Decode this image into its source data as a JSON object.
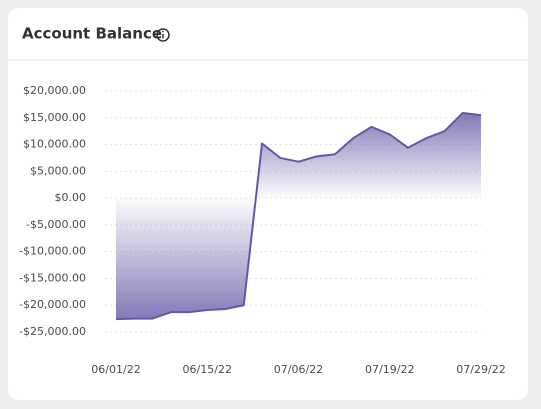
{
  "chart_data": {
    "type": "area",
    "title": "Account Balance",
    "categories": [
      "06/01/22",
      null,
      null,
      null,
      null,
      "06/15/22",
      null,
      null,
      null,
      null,
      "07/06/22",
      null,
      null,
      null,
      null,
      "07/19/22",
      null,
      null,
      null,
      null,
      "07/29/22"
    ],
    "values": [
      -22600,
      -22500,
      -22500,
      -21300,
      -21300,
      -20900,
      -20700,
      -20000,
      10200,
      7500,
      6800,
      7800,
      8200,
      11200,
      13300,
      11900,
      9400,
      11200,
      12500,
      15900,
      15500
    ],
    "color": "#6657a6",
    "ylim": [
      -25000,
      20000
    ],
    "yticks": [
      {
        "value": 20000,
        "label": "$20,000.00"
      },
      {
        "value": 15000,
        "label": "$15,000.00"
      },
      {
        "value": 10000,
        "label": "$10,000.00"
      },
      {
        "value": 5000,
        "label": "$5,000.00"
      },
      {
        "value": 0,
        "label": "$0.00"
      },
      {
        "value": -5000,
        "label": "-$5,000.00"
      },
      {
        "value": -10000,
        "label": "-$10,000.00"
      },
      {
        "value": -15000,
        "label": "-$15,000.00"
      },
      {
        "value": -20000,
        "label": "-$20,000.00"
      },
      {
        "value": -25000,
        "label": "-$25,000.00"
      }
    ],
    "grid": true
  }
}
